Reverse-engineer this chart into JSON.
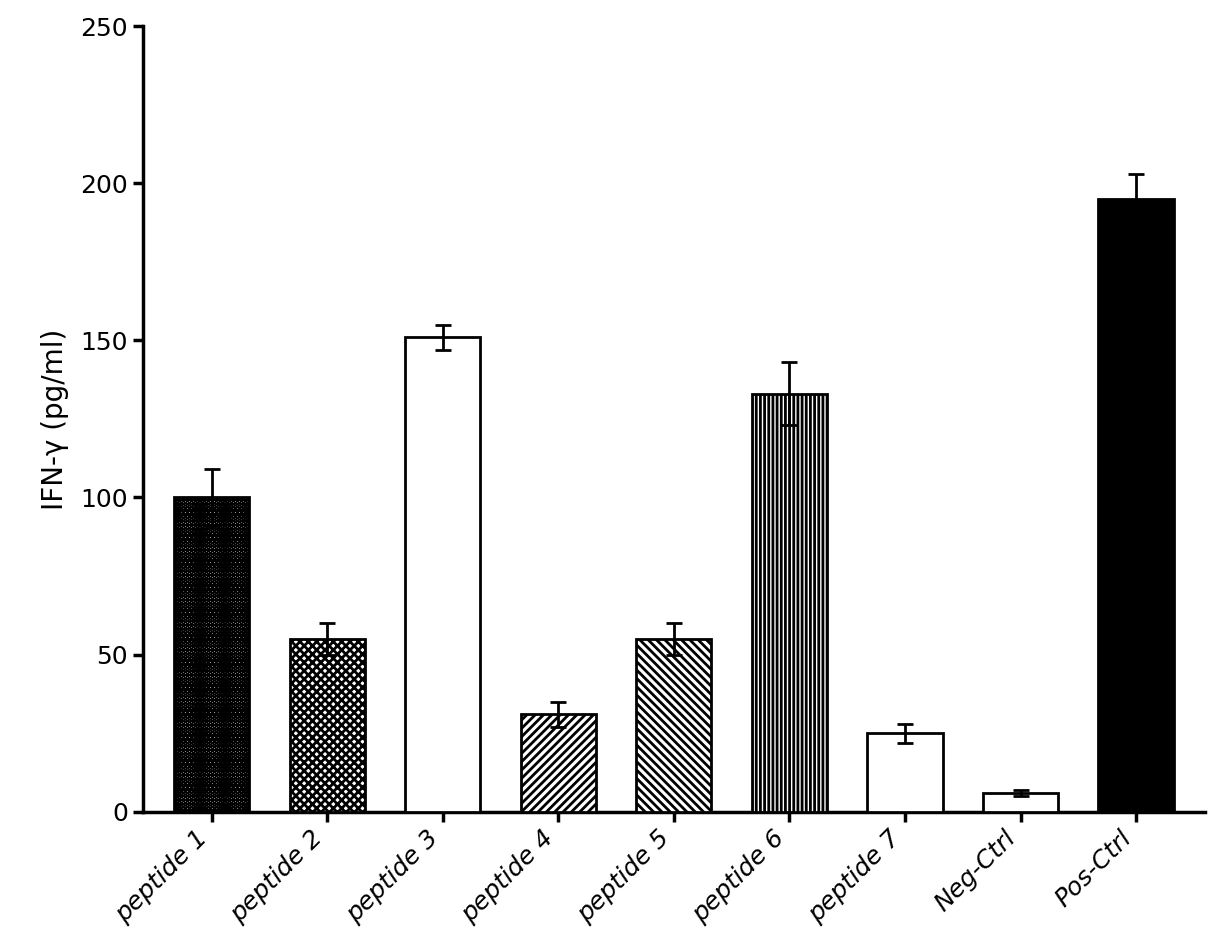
{
  "categories": [
    "peptide 1",
    "peptide 2",
    "peptide 3",
    "peptide 4",
    "peptide 5",
    "peptide 6",
    "peptide 7",
    "Neg-Ctrl",
    "Pos-Ctrl"
  ],
  "values": [
    100,
    55,
    151,
    31,
    55,
    133,
    25,
    6,
    195
  ],
  "errors": [
    9,
    5,
    4,
    4,
    5,
    10,
    3,
    1,
    8
  ],
  "hatch_patterns": [
    "oooo",
    "xxxx",
    "====",
    "////",
    "\\\\\\\\",
    "||||",
    "####",
    "",
    ""
  ],
  "face_colors": [
    "white",
    "white",
    "white",
    "white",
    "white",
    "white",
    "white",
    "white",
    "black"
  ],
  "edge_colors": [
    "black",
    "black",
    "black",
    "black",
    "black",
    "black",
    "black",
    "black",
    "black"
  ],
  "ylabel": "IFN-γ (pg/ml)",
  "ylim": [
    0,
    250
  ],
  "yticks": [
    0,
    50,
    100,
    150,
    200,
    250
  ],
  "background_color": "#ffffff",
  "bar_width": 0.65,
  "figsize": [
    12.22,
    9.44
  ],
  "dpi": 100,
  "tick_labelsize": 18,
  "ylabel_fontsize": 20
}
